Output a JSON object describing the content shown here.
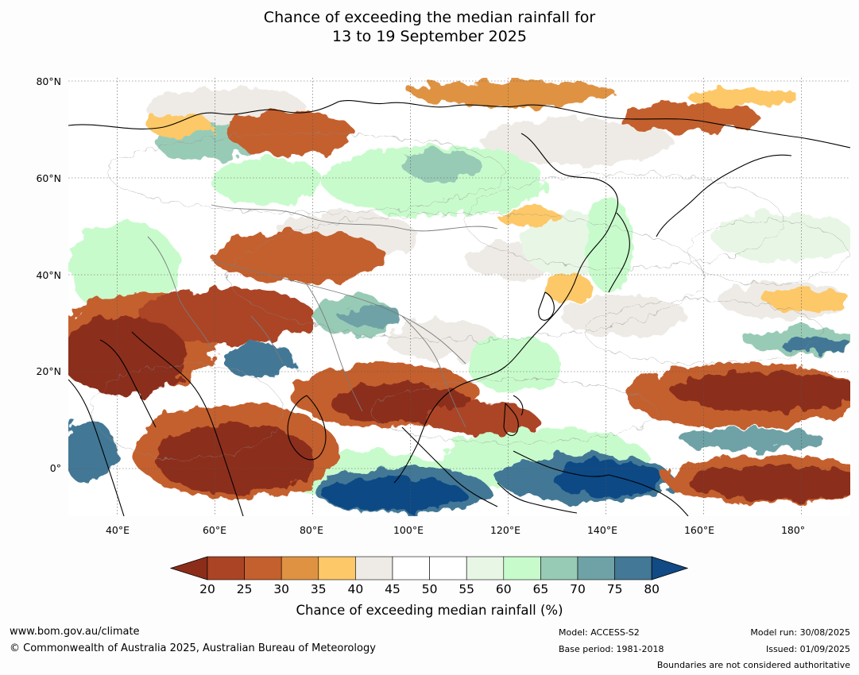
{
  "title": {
    "line1": "Chance of exceeding the median rainfall for",
    "line2": "13 to 19 September 2025"
  },
  "map": {
    "lat_labels": [
      "80°N",
      "60°N",
      "40°N",
      "20°N",
      "0°"
    ],
    "lon_labels": [
      "40°E",
      "60°E",
      "80°E",
      "100°E",
      "120°E",
      "140°E",
      "160°E",
      "180°"
    ],
    "lat_range": [
      -10,
      80
    ],
    "lon_range": [
      30,
      190
    ]
  },
  "colorbar": {
    "ticks": [
      "20",
      "25",
      "30",
      "35",
      "40",
      "45",
      "50",
      "55",
      "60",
      "65",
      "70",
      "75",
      "80"
    ],
    "colors": {
      "below20": "#8c2d1a",
      "c20_25": "#ab4425",
      "c25_30": "#c4602d",
      "c30_35": "#df9342",
      "c35_40": "#fdc867",
      "c40_45": "#eeebe6",
      "c45_50": "#ffffff",
      "c50_55": "#ffffff",
      "c55_60": "#e8f6e6",
      "c60_65": "#c8fbcc",
      "c65_70": "#98cbb6",
      "c70_75": "#6ea2a6",
      "c75_80": "#437896",
      "above80": "#114a85"
    },
    "label": "Chance of exceeding median rainfall (%)"
  },
  "footer": {
    "website": "www.bom.gov.au/climate",
    "copyright": "© Commonwealth of Australia 2025, Australian Bureau of Meteorology",
    "model": "Model: ACCESS-S2",
    "base_period": "Base period: 1981-2018",
    "model_run": "Model run: 30/08/2025",
    "issued": "Issued: 01/09/2025",
    "disclaimer": "Boundaries are not considered authoritative"
  }
}
